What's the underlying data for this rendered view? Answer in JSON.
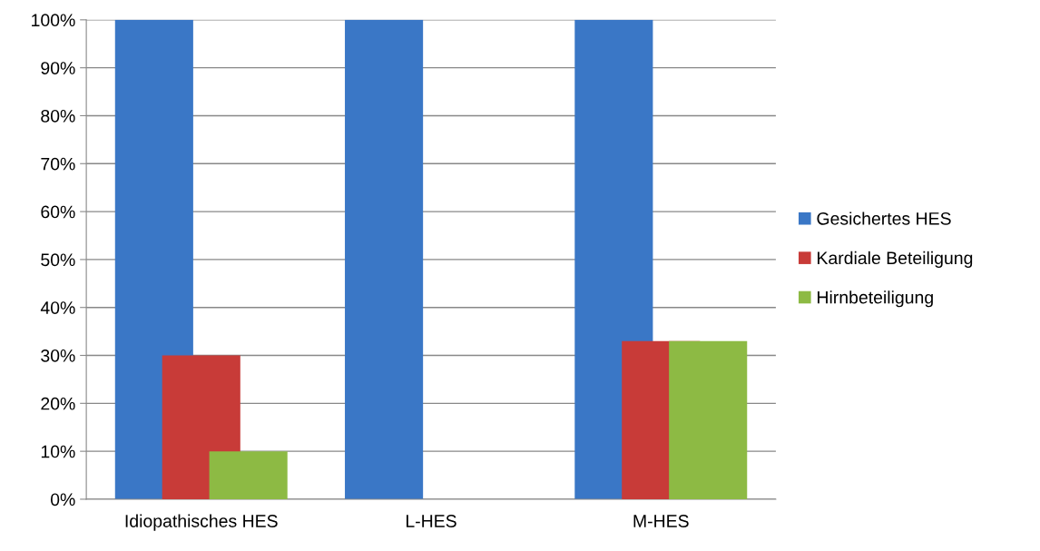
{
  "chart_data": {
    "type": "bar",
    "categories": [
      "Idiopathisches HES",
      "L-HES",
      "M-HES"
    ],
    "series": [
      {
        "name": "Gesichertes HES",
        "color": "#3a77c6",
        "values": [
          100,
          100,
          100
        ]
      },
      {
        "name": "Kardiale Beteiligung",
        "color": "#c83b38",
        "values": [
          30,
          0,
          33
        ]
      },
      {
        "name": "Hirnbeteiligung",
        "color": "#8dba44",
        "values": [
          10,
          0,
          33
        ]
      }
    ],
    "ylim": [
      0,
      100
    ],
    "yticks": [
      {
        "value": 0,
        "label": "0%"
      },
      {
        "value": 10,
        "label": "10%"
      },
      {
        "value": 20,
        "label": "20%"
      },
      {
        "value": 30,
        "label": "30%"
      },
      {
        "value": 40,
        "label": "40%"
      },
      {
        "value": 50,
        "label": "50%"
      },
      {
        "value": 60,
        "label": "60%"
      },
      {
        "value": 70,
        "label": "70%"
      },
      {
        "value": 80,
        "label": "80%"
      },
      {
        "value": 90,
        "label": "90%"
      },
      {
        "value": 100,
        "label": "100%"
      }
    ],
    "grid": "y",
    "legend": "right"
  }
}
